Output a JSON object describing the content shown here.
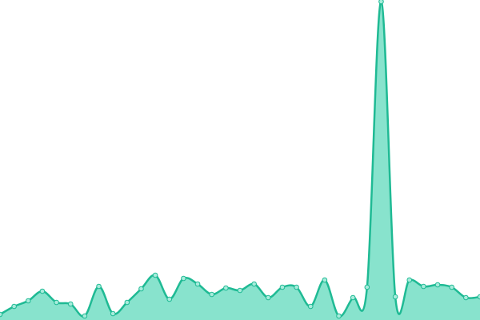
{
  "chart_data": {
    "type": "area",
    "values": [
      7,
      17,
      24,
      36,
      22,
      20,
      5,
      42,
      8,
      22,
      39,
      56,
      26,
      52,
      45,
      32,
      40,
      37,
      45,
      28,
      41,
      41,
      17,
      50,
      5,
      28,
      41,
      398,
      29,
      50,
      42,
      44,
      41,
      28,
      29
    ],
    "ylim": [
      0,
      400
    ],
    "color": "#1fba94",
    "fill": "#88e3cd",
    "marker_fill": "#a8ecdc"
  }
}
